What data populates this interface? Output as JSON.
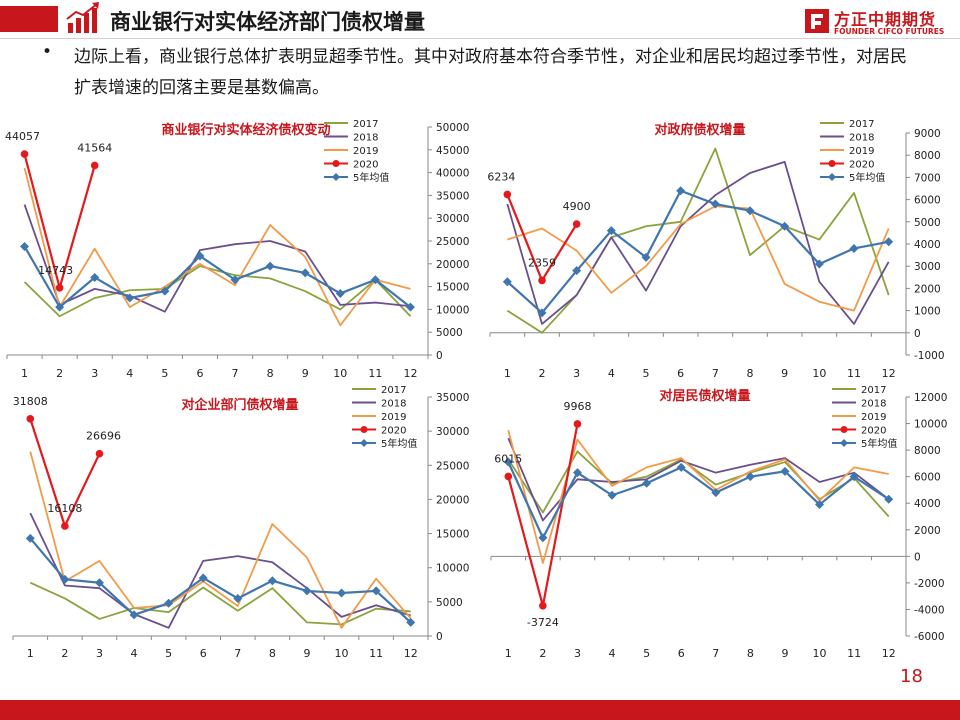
{
  "header": {
    "title": "商业银行对实体经济部门债权增量",
    "logo_cn": "方正中期期货",
    "logo_en": "FOUNDER CIFCO FUTURES",
    "icon": "bar-growth-arrow-icon",
    "accent_color": "#c8161d"
  },
  "bullet": {
    "marker": "•",
    "text": "边际上看，商业银行总体扩表明显超季节性。其中对政府基本符合季节性，对企业和居民均超过季节性，对居民扩表增速的回落主要是基数偏高。"
  },
  "page_number": "18",
  "series_styles": {
    "2017": "#8aa33c",
    "2018": "#6a4f8f",
    "2019": "#f39a49",
    "2020": "#e3191c",
    "5年均值": "#3f76ad"
  },
  "chart_data": [
    {
      "type": "line",
      "title": "商业银行对实体经济债权变动",
      "x": [
        "1",
        "2",
        "3",
        "4",
        "5",
        "6",
        "7",
        "8",
        "9",
        "10",
        "11",
        "12"
      ],
      "ylim": [
        0,
        50000
      ],
      "yticks": [
        "0",
        "5000",
        "10000",
        "15000",
        "20000",
        "25000",
        "30000",
        "35000",
        "40000",
        "45000",
        "50000"
      ],
      "legend": [
        "2017",
        "2018",
        "2019",
        "2020",
        "5年均值"
      ],
      "series": [
        {
          "name": "2017",
          "values": [
            16000,
            8500,
            12500,
            14200,
            14500,
            19500,
            17500,
            16800,
            14000,
            10000,
            16500,
            8500
          ]
        },
        {
          "name": "2018",
          "values": [
            33000,
            11000,
            14500,
            13000,
            9500,
            23000,
            24300,
            25000,
            22700,
            11000,
            11500,
            10700
          ]
        },
        {
          "name": "2019",
          "values": [
            41000,
            10500,
            23300,
            10500,
            15000,
            20000,
            15300,
            28500,
            21500,
            6500,
            16500,
            14500
          ]
        },
        {
          "name": "2020",
          "values": [
            44057,
            14743,
            41564,
            null,
            null,
            null,
            null,
            null,
            null,
            null,
            null,
            null
          ]
        },
        {
          "name": "5年均值",
          "values": [
            23800,
            10500,
            17000,
            12500,
            14000,
            21700,
            16500,
            19500,
            18000,
            13500,
            16500,
            10500
          ]
        }
      ],
      "data_labels": [
        "44057",
        "14743",
        "41564"
      ]
    },
    {
      "type": "line",
      "title": "对政府债权增量",
      "x": [
        "1",
        "2",
        "3",
        "4",
        "5",
        "6",
        "7",
        "8",
        "9",
        "10",
        "11",
        "12"
      ],
      "ylim": [
        -1000,
        9000
      ],
      "yticks": [
        "-1000",
        "0",
        "1000",
        "2000",
        "3000",
        "4000",
        "5000",
        "6000",
        "7000",
        "8000",
        "9000"
      ],
      "legend": [
        "2017",
        "2018",
        "2019",
        "2020",
        "5年均值"
      ],
      "series": [
        {
          "name": "2017",
          "values": [
            1000,
            0,
            1700,
            4300,
            4800,
            5000,
            8300,
            3500,
            4800,
            4200,
            6300,
            1700
          ]
        },
        {
          "name": "2018",
          "values": [
            5800,
            400,
            1700,
            4300,
            1900,
            4800,
            6200,
            7200,
            7700,
            2300,
            400,
            3200
          ]
        },
        {
          "name": "2019",
          "values": [
            4200,
            4700,
            3700,
            1800,
            3000,
            4900,
            5700,
            5600,
            2200,
            1400,
            1000,
            4700
          ]
        },
        {
          "name": "2020",
          "values": [
            6234,
            2359,
            4900,
            null,
            null,
            null,
            null,
            null,
            null,
            null,
            null,
            null
          ]
        },
        {
          "name": "5年均值",
          "values": [
            2300,
            900,
            2800,
            4600,
            3400,
            6400,
            5800,
            5500,
            4800,
            3100,
            3800,
            4100
          ]
        }
      ],
      "data_labels": [
        "6234",
        "2359",
        "4900"
      ]
    },
    {
      "type": "line",
      "title": "对企业部门债权增量",
      "x": [
        "1",
        "2",
        "3",
        "4",
        "5",
        "6",
        "7",
        "8",
        "9",
        "10",
        "11",
        "12"
      ],
      "ylim": [
        0,
        35000
      ],
      "yticks": [
        "0",
        "5000",
        "10000",
        "15000",
        "20000",
        "25000",
        "30000",
        "35000"
      ],
      "legend": [
        "2017",
        "2018",
        "2019",
        "2020",
        "5年均值"
      ],
      "series": [
        {
          "name": "2017",
          "values": [
            7800,
            5500,
            2500,
            4100,
            3500,
            7100,
            3700,
            7000,
            2000,
            1700,
            4000,
            3600
          ]
        },
        {
          "name": "2018",
          "values": [
            18000,
            7400,
            7000,
            3200,
            1200,
            11000,
            11700,
            10800,
            7000,
            2800,
            4500,
            3000
          ]
        },
        {
          "name": "2019",
          "values": [
            27000,
            8000,
            11000,
            4100,
            4500,
            8000,
            4400,
            16400,
            11500,
            1200,
            8400,
            2600
          ]
        },
        {
          "name": "2020",
          "values": [
            31808,
            16108,
            26696,
            null,
            null,
            null,
            null,
            null,
            null,
            null,
            null,
            null
          ]
        },
        {
          "name": "5年均值",
          "values": [
            14300,
            8300,
            7800,
            3100,
            4800,
            8500,
            5500,
            8100,
            6600,
            6300,
            6600,
            2000
          ]
        }
      ],
      "data_labels": [
        "31808",
        "16108",
        "26696"
      ]
    },
    {
      "type": "line",
      "title": "对居民债权增量",
      "x": [
        "1",
        "2",
        "3",
        "4",
        "5",
        "6",
        "7",
        "8",
        "9",
        "10",
        "11",
        "12"
      ],
      "ylim": [
        -6000,
        12000
      ],
      "yticks": [
        "-6000",
        "-4000",
        "-2000",
        "0",
        "2000",
        "4000",
        "6000",
        "8000",
        "10000",
        "12000"
      ],
      "legend": [
        "2017",
        "2018",
        "2019",
        "2020",
        "5年均值"
      ],
      "series": [
        {
          "name": "2017",
          "values": [
            7300,
            3300,
            7900,
            5500,
            6000,
            7300,
            5400,
            6300,
            7100,
            4300,
            5900,
            3000
          ]
        },
        {
          "name": "2018",
          "values": [
            8900,
            2700,
            5800,
            5600,
            5800,
            7200,
            6300,
            6900,
            7400,
            5600,
            6300,
            4300
          ]
        },
        {
          "name": "2019",
          "values": [
            9500,
            -500,
            8800,
            5300,
            6700,
            7400,
            5000,
            6400,
            7300,
            4200,
            6700,
            6200
          ]
        },
        {
          "name": "2020",
          "values": [
            6015,
            -3724,
            9968,
            null,
            null,
            null,
            null,
            null,
            null,
            null,
            null,
            null
          ]
        },
        {
          "name": "5年均值",
          "values": [
            7100,
            1400,
            6300,
            4600,
            5500,
            6700,
            4800,
            6000,
            6400,
            3900,
            6000,
            4300
          ]
        }
      ],
      "data_labels": [
        "6015",
        "-3724",
        "9968"
      ]
    }
  ]
}
